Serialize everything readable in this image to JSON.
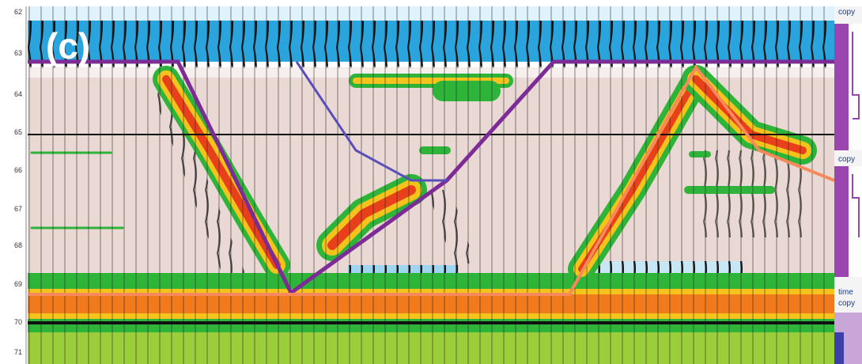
{
  "figure_label": "(c)",
  "axis_labels": [
    "62",
    "63",
    "64",
    "65",
    "66",
    "67",
    "68",
    "69",
    "70",
    "71"
  ],
  "side_labels": [
    "copy",
    "copy",
    "time",
    "copy"
  ]
}
